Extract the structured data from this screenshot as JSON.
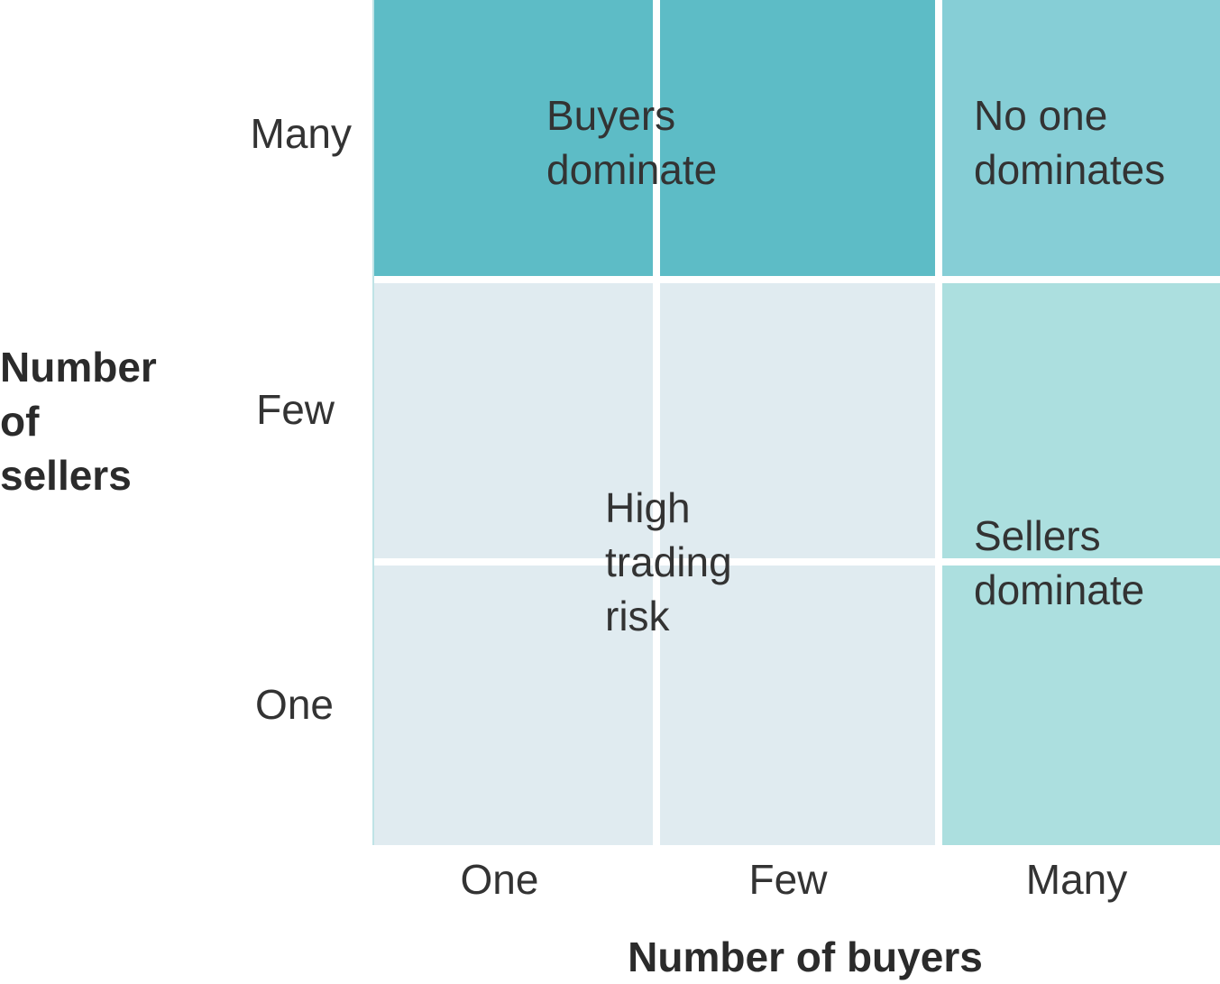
{
  "y_axis": {
    "title": "Number of sellers",
    "labels": [
      "Many",
      "Few",
      "One"
    ]
  },
  "x_axis": {
    "title": "Number of buyers",
    "labels": [
      "One",
      "Few",
      "Many"
    ]
  },
  "regions": [
    {
      "label": "Buyers dominate"
    },
    {
      "label": "No one dominates"
    },
    {
      "label": "High trading risk"
    },
    {
      "label": "Sellers dominate"
    }
  ]
}
